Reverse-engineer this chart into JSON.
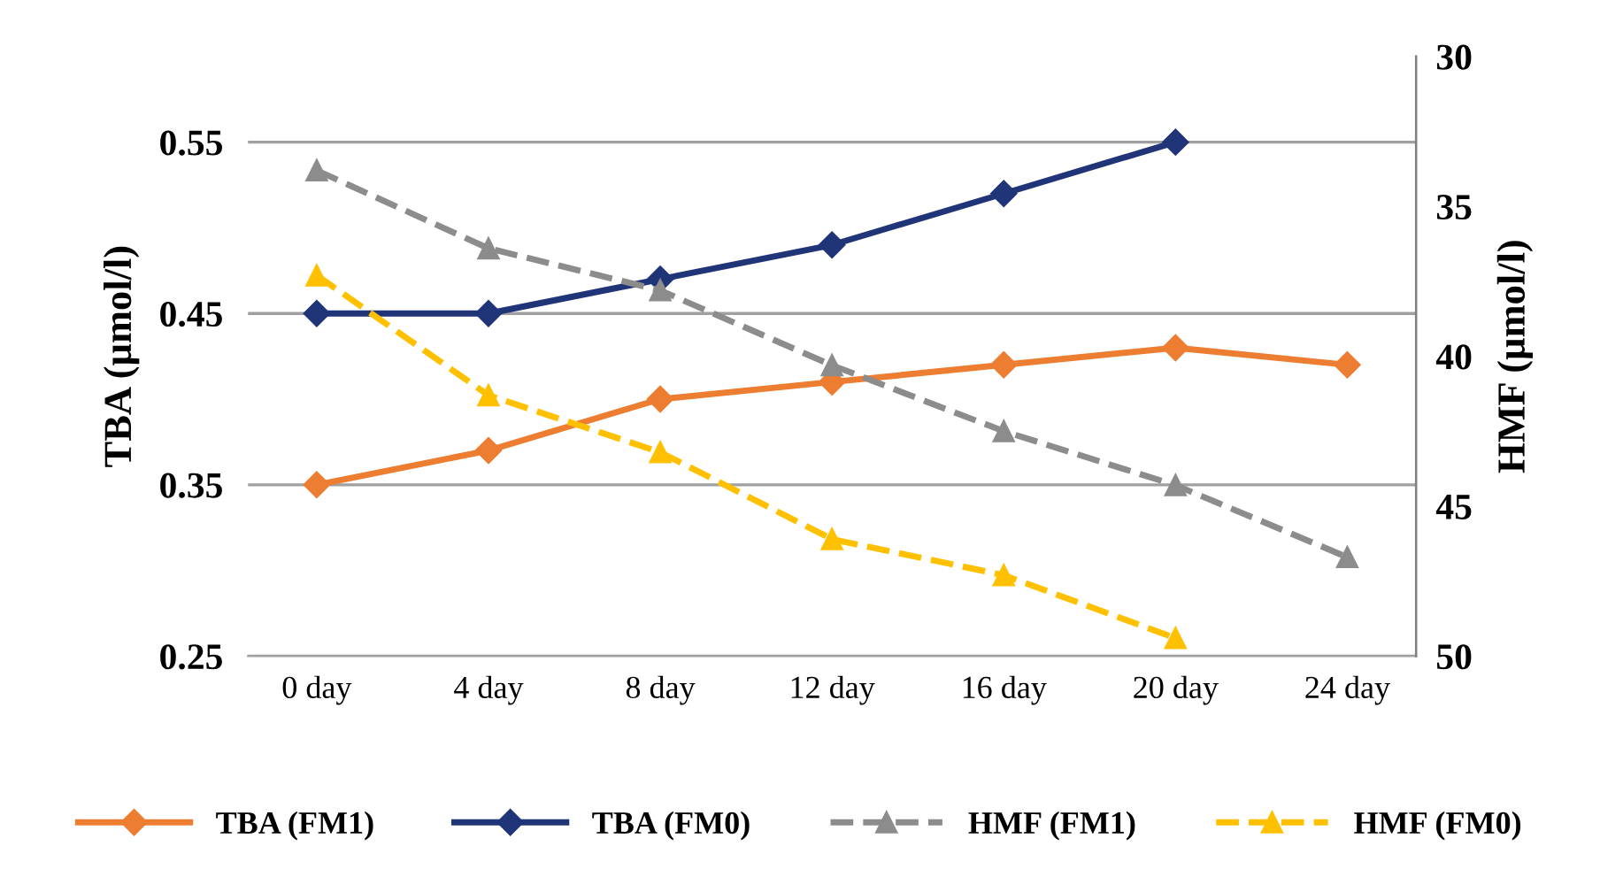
{
  "chart_data": {
    "type": "line",
    "categories": [
      "0 day",
      "4 day",
      "8 day",
      "12 day",
      "16 day",
      "20 day",
      "24 day"
    ],
    "ylabel": "TBA (µmol/l)",
    "y2label": "HMF (µmol/l)",
    "ylim": [
      0.25,
      0.6
    ],
    "yticks": [
      0.25,
      0.35,
      0.45,
      0.55
    ],
    "y2lim": [
      50,
      30
    ],
    "y2ticks": [
      30,
      35,
      40,
      45,
      50
    ],
    "grid": "y",
    "legend": "bottom",
    "series": [
      {
        "name": "TBA (FM1)",
        "color": "#ed7d31",
        "marker": "diamond",
        "line_style": "solid",
        "values": [
          0.35,
          0.37,
          0.4,
          0.41,
          0.42,
          0.43,
          0.42
        ]
      },
      {
        "name": "TBA (FM0)",
        "color": "#1f3577",
        "marker": "diamond",
        "line_style": "solid",
        "values": [
          0.45,
          0.45,
          0.47,
          0.49,
          0.52,
          0.55,
          null
        ]
      },
      {
        "name": "HMF (FM1)",
        "color": "#8c8c8c",
        "marker": "triangle",
        "line_style": "dashed",
        "axis": "y2",
        "values": [
          33.8,
          36.4,
          37.8,
          40.3,
          42.5,
          44.3,
          46.7
        ]
      },
      {
        "name": "HMF (FM0)",
        "color": "#ffc000",
        "marker": "triangle",
        "line_style": "dashed",
        "axis": "y2",
        "values": [
          37.3,
          41.3,
          43.2,
          46.1,
          47.3,
          49.4,
          null
        ]
      }
    ]
  }
}
